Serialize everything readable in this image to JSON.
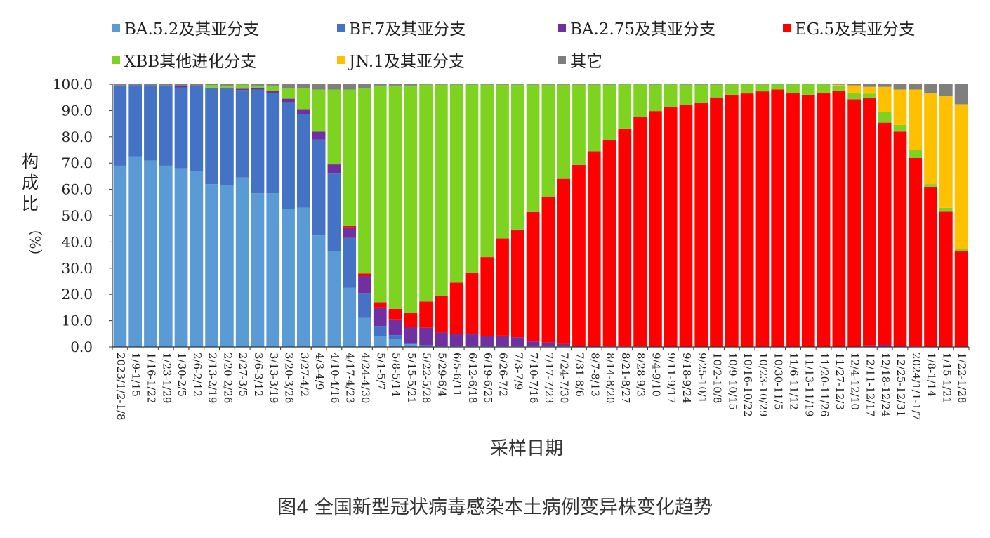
{
  "chart_data": {
    "type": "bar",
    "stacked": true,
    "xlabel": "采样日期",
    "ylabel_chars": [
      "构",
      "成",
      "比",
      "（%）"
    ],
    "ylim": [
      0,
      100
    ],
    "yticks": [
      "0.0",
      "10.0",
      "20.0",
      "30.0",
      "40.0",
      "50.0",
      "60.0",
      "70.0",
      "80.0",
      "90.0",
      "100.0"
    ],
    "categories": [
      "2023/1/2-1/8",
      "1/9-1/15",
      "1/16-1/22",
      "1/23-1/29",
      "1/30-2/5",
      "2/6-2/12",
      "2/13-2/19",
      "2/20-2/26",
      "2/27-3/5",
      "3/6-3/12",
      "3/13-3/19",
      "3/20-3/26",
      "3/27-4/2",
      "4/3-4/9",
      "4/10-4/16",
      "4/17-4/23",
      "4/24-4/30",
      "5/1-5/7",
      "5/8-5/14",
      "5/15-5/21",
      "5/22-5/28",
      "5/29-6/4",
      "6/5-6/11",
      "6/12-6/18",
      "6/19-6/25",
      "6/26-7/2",
      "7/3-7/9",
      "7/10-7/16",
      "7/17-7/23",
      "7/24-7/30",
      "7/31-8/6",
      "8/7-8/13",
      "8/14-8/20",
      "8/21-8/27",
      "8/28-9/3",
      "9/4-9/10",
      "9/11-9/17",
      "9/18-9/24",
      "9/25-10/1",
      "10/2-10/8",
      "10/9-10/15",
      "10/16-10/22",
      "10/23-10/29",
      "10/30-11/5",
      "11/6-11/12",
      "11/13-11/19",
      "11/20-11/26",
      "11/27-12/3",
      "12/4-12/10",
      "12/11-12/17",
      "12/18-12/24",
      "12/25-12/31",
      "2024/1/1-1/7",
      "1/8-1/14",
      "1/15-1/21",
      "1/22-1/28"
    ],
    "series": [
      {
        "name": "BA.5.2及其亚分支",
        "color": "#5b9bd5",
        "values": [
          69,
          72.5,
          71,
          69,
          68,
          67,
          62,
          61.5,
          64.5,
          58.5,
          58.5,
          52.5,
          53,
          42.5,
          36.5,
          22.5,
          11,
          4,
          3,
          1,
          0.5,
          0.3,
          0.3,
          0.3,
          0.3,
          0.3,
          0.3,
          0.2,
          0.2,
          0.2,
          0.1,
          0.1,
          0,
          0,
          0,
          0,
          0,
          0,
          0,
          0,
          0,
          0,
          0,
          0,
          0,
          0,
          0,
          0,
          0,
          0,
          0,
          0,
          0,
          0,
          0,
          0
        ]
      },
      {
        "name": "BF.7及其亚分支",
        "color": "#4472c4",
        "values": [
          30.5,
          27.2,
          28.7,
          30.5,
          30.8,
          32.3,
          36.5,
          36.8,
          33.3,
          39.5,
          38.2,
          40.7,
          35.7,
          36.5,
          29.5,
          19,
          9.5,
          4,
          1.5,
          0.5,
          0.3,
          0.2,
          0.2,
          0.2,
          0.2,
          0.2,
          0.2,
          0.1,
          0.1,
          0.1,
          0,
          0,
          0,
          0,
          0,
          0,
          0,
          0,
          0,
          0,
          0,
          0,
          0,
          0,
          0,
          0,
          0,
          0,
          0,
          0,
          0,
          0,
          0,
          0,
          0,
          0
        ]
      },
      {
        "name": "BA.2.75及其亚分支",
        "color": "#7030a0",
        "values": [
          0,
          0,
          0,
          0,
          0.5,
          0,
          0.2,
          0.2,
          0.5,
          0.5,
          0.8,
          1.3,
          1.8,
          3,
          3.5,
          4,
          6.5,
          7,
          6,
          6,
          6.5,
          5,
          4.5,
          4.3,
          3.7,
          3.8,
          3.2,
          1.8,
          1.4,
          0.8,
          0.4,
          0.2,
          0.2,
          0.2,
          0.2,
          0.1,
          0.1,
          0.1,
          0.1,
          0.1,
          0.1,
          0.1,
          0.1,
          0.1,
          0.1,
          0.1,
          0.1,
          0.1,
          0.1,
          0.6,
          0.8,
          0.3,
          0.2,
          0.1,
          0.1,
          0.1
        ]
      },
      {
        "name": "EG.5及其亚分支",
        "color": "#ff0000",
        "values": [
          0,
          0,
          0,
          0,
          0,
          0,
          0,
          0,
          0,
          0,
          0,
          0,
          0,
          0,
          0,
          0.5,
          1,
          2,
          4,
          5.5,
          10,
          14,
          19.5,
          23.5,
          30,
          37,
          41,
          49.3,
          55.6,
          62.9,
          68.8,
          74.2,
          78.6,
          83,
          87.3,
          89.7,
          91.1,
          91.9,
          92.9,
          94.9,
          95.9,
          96.4,
          97.2,
          97.9,
          96.6,
          95.9,
          96.7,
          97.4,
          94.2,
          94.3,
          84.6,
          81.7,
          71.8,
          60.9,
          51.4,
          36.3
        ]
      },
      {
        "name": "XBB其他进化分支",
        "color": "#7ed321",
        "values": [
          0,
          0,
          0,
          0,
          0,
          0,
          1,
          1,
          1.5,
          1,
          2,
          4,
          8,
          16,
          28.5,
          52,
          70.5,
          82.5,
          85,
          86.5,
          82.5,
          80.3,
          75.3,
          71.5,
          65.6,
          58.5,
          55.1,
          48.4,
          42.5,
          35.8,
          30.5,
          25.3,
          21,
          16.7,
          12.4,
          10,
          8.7,
          7.8,
          6.8,
          4.8,
          3.9,
          3.4,
          2.6,
          1.9,
          3.2,
          3.9,
          3.1,
          2,
          2.5,
          1.5,
          4,
          2.5,
          3,
          1,
          1.5,
          1
        ]
      },
      {
        "name": "JN.1及其亚分支",
        "color": "#ffc000",
        "values": [
          0,
          0,
          0,
          0,
          0,
          0,
          0,
          0,
          0,
          0,
          0,
          0,
          0,
          0,
          0,
          0,
          0,
          0,
          0,
          0,
          0,
          0,
          0,
          0,
          0,
          0,
          0,
          0,
          0,
          0,
          0,
          0,
          0,
          0,
          0,
          0,
          0,
          0,
          0,
          0,
          0,
          0,
          0,
          0,
          0,
          0,
          0,
          0.3,
          2.8,
          2.6,
          9.6,
          13.5,
          23,
          34.5,
          42.5,
          55
        ]
      },
      {
        "name": "其它",
        "color": "#7f7f7f",
        "values": [
          0.5,
          0.3,
          0.3,
          0.5,
          0.7,
          0.7,
          0.3,
          0.5,
          0.2,
          0.5,
          0.5,
          1.5,
          1.5,
          2,
          2,
          2,
          1.5,
          0.5,
          0.5,
          0.5,
          0.2,
          0.2,
          0.2,
          0.2,
          0.2,
          0.2,
          0.2,
          0.2,
          0.2,
          0.2,
          0.2,
          0.2,
          0.2,
          0.1,
          0.1,
          0.2,
          0.1,
          0.2,
          0.2,
          0.2,
          0.1,
          0.1,
          0.1,
          0.1,
          0.1,
          0.1,
          0.1,
          0.2,
          0.4,
          1,
          1,
          2,
          2,
          3.5,
          4.5,
          7.6
        ]
      }
    ]
  },
  "caption": "图4  全国新型冠状病毒感染本土病例变异株变化趋势"
}
